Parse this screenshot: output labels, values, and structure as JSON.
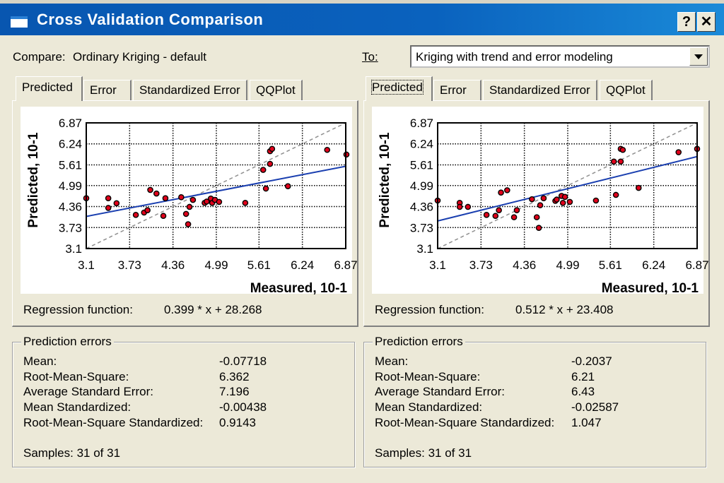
{
  "window": {
    "title": "Cross Validation Comparison",
    "help_label": "?",
    "close_label": "✕"
  },
  "compare": {
    "label": "Compare:",
    "value": "Ordinary Kriging - default"
  },
  "to": {
    "label": "To:",
    "value": "Kriging with trend and error modeling"
  },
  "tabs": [
    "Predicted",
    "Error",
    "Standardized Error",
    "QQPlot"
  ],
  "panels": [
    {
      "regression_label": "Regression function:",
      "regression_value": "0.399 * x + 28.268",
      "errors_title": "Prediction errors",
      "errors": [
        {
          "label": "Mean:",
          "value": "-0.07718"
        },
        {
          "label": "Root-Mean-Square:",
          "value": "6.362"
        },
        {
          "label": "Average Standard Error:",
          "value": "7.196"
        },
        {
          "label": "Mean Standardized:",
          "value": "-0.00438"
        },
        {
          "label": "Root-Mean-Square Standardized:",
          "value": "0.9143"
        }
      ],
      "samples": "Samples: 31 of 31"
    },
    {
      "regression_label": "Regression function:",
      "regression_value": "0.512 * x + 23.408",
      "errors_title": "Prediction errors",
      "errors": [
        {
          "label": "Mean:",
          "value": "-0.2037"
        },
        {
          "label": "Root-Mean-Square:",
          "value": "6.21"
        },
        {
          "label": "Average Standard Error:",
          "value": "6.43"
        },
        {
          "label": "Mean Standardized:",
          "value": "-0.02587"
        },
        {
          "label": "Root-Mean-Square Standardized:",
          "value": "1.047"
        }
      ],
      "samples": "Samples: 31 of 31"
    }
  ],
  "colors": {
    "point": "#e0001b",
    "regression": "#1a3fb0",
    "reference": "#909090"
  },
  "chart_data": [
    {
      "type": "scatter",
      "title": "",
      "xlabel": "Measured, 10-1",
      "ylabel": "Predicted, 10-1",
      "xlim": [
        3.1,
        6.87
      ],
      "ylim": [
        3.1,
        6.87
      ],
      "xticks": [
        "3.1",
        "3.73",
        "4.36",
        "4.99",
        "5.61",
        "6.24",
        "6.87"
      ],
      "yticks": [
        "3.1",
        "3.73",
        "4.36",
        "4.99",
        "5.61",
        "6.24",
        "6.87"
      ],
      "grid": true,
      "regression": {
        "slope": 0.399,
        "intercept": 2.8268
      },
      "reference_line": "y = x",
      "points": [
        [
          3.1,
          4.61
        ],
        [
          3.42,
          4.61
        ],
        [
          3.42,
          4.32
        ],
        [
          3.54,
          4.46
        ],
        [
          3.82,
          4.11
        ],
        [
          3.94,
          4.18
        ],
        [
          3.99,
          4.25
        ],
        [
          4.03,
          4.86
        ],
        [
          4.12,
          4.75
        ],
        [
          4.22,
          4.08
        ],
        [
          4.25,
          4.61
        ],
        [
          4.48,
          4.64
        ],
        [
          4.55,
          4.14
        ],
        [
          4.58,
          3.83
        ],
        [
          4.6,
          4.35
        ],
        [
          4.65,
          4.56
        ],
        [
          4.82,
          4.47
        ],
        [
          4.85,
          4.51
        ],
        [
          4.91,
          4.6
        ],
        [
          4.93,
          4.47
        ],
        [
          4.97,
          4.56
        ],
        [
          5.03,
          4.5
        ],
        [
          5.41,
          4.47
        ],
        [
          5.67,
          5.46
        ],
        [
          5.71,
          4.9
        ],
        [
          5.77,
          5.64
        ],
        [
          5.77,
          6.02
        ],
        [
          5.8,
          6.09
        ],
        [
          6.03,
          4.97
        ],
        [
          6.6,
          6.06
        ],
        [
          6.88,
          5.92
        ]
      ]
    },
    {
      "type": "scatter",
      "title": "",
      "xlabel": "Measured, 10-1",
      "ylabel": "Predicted, 10-1",
      "xlim": [
        3.1,
        6.87
      ],
      "ylim": [
        3.1,
        6.87
      ],
      "xticks": [
        "3.1",
        "3.73",
        "4.36",
        "4.99",
        "5.61",
        "6.24",
        "6.87"
      ],
      "yticks": [
        "3.1",
        "3.73",
        "4.36",
        "4.99",
        "5.61",
        "6.24",
        "6.87"
      ],
      "grid": true,
      "regression": {
        "slope": 0.512,
        "intercept": 2.3408
      },
      "reference_line": "y = x",
      "points": [
        [
          3.1,
          4.54
        ],
        [
          3.42,
          4.47
        ],
        [
          3.42,
          4.35
        ],
        [
          3.54,
          4.35
        ],
        [
          3.81,
          4.11
        ],
        [
          3.94,
          4.08
        ],
        [
          3.99,
          4.25
        ],
        [
          4.02,
          4.78
        ],
        [
          4.11,
          4.85
        ],
        [
          4.21,
          4.04
        ],
        [
          4.25,
          4.25
        ],
        [
          4.47,
          4.58
        ],
        [
          4.54,
          4.04
        ],
        [
          4.57,
          3.72
        ],
        [
          4.59,
          4.4
        ],
        [
          4.64,
          4.61
        ],
        [
          4.81,
          4.53
        ],
        [
          4.83,
          4.57
        ],
        [
          4.9,
          4.68
        ],
        [
          4.92,
          4.47
        ],
        [
          4.95,
          4.65
        ],
        [
          5.02,
          4.5
        ],
        [
          5.4,
          4.54
        ],
        [
          5.66,
          5.71
        ],
        [
          5.69,
          4.71
        ],
        [
          5.76,
          5.71
        ],
        [
          5.76,
          6.09
        ],
        [
          5.79,
          6.06
        ],
        [
          6.02,
          4.92
        ],
        [
          6.6,
          5.99
        ],
        [
          6.87,
          6.09
        ]
      ]
    }
  ]
}
